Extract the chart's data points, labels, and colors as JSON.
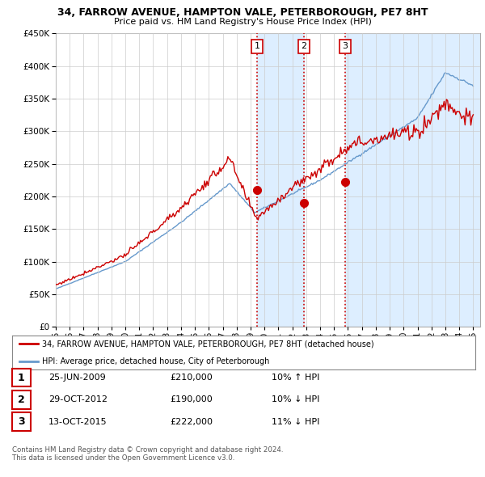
{
  "title_line1": "34, FARROW AVENUE, HAMPTON VALE, PETERBOROUGH, PE7 8HT",
  "title_line2": "Price paid vs. HM Land Registry's House Price Index (HPI)",
  "ytick_values": [
    0,
    50000,
    100000,
    150000,
    200000,
    250000,
    300000,
    350000,
    400000,
    450000
  ],
  "xlim": [
    1995.0,
    2025.5
  ],
  "ylim": [
    0,
    450000
  ],
  "sale_dates": [
    2009.48,
    2012.83,
    2015.79
  ],
  "sale_prices": [
    210000,
    190000,
    222000
  ],
  "sale_labels": [
    "1",
    "2",
    "3"
  ],
  "vline_color": "#cc0000",
  "shade_color": "#ddeeff",
  "legend_red_label": "34, FARROW AVENUE, HAMPTON VALE, PETERBOROUGH, PE7 8HT (detached house)",
  "legend_blue_label": "HPI: Average price, detached house, City of Peterborough",
  "table_data": [
    {
      "label": "1",
      "date": "25-JUN-2009",
      "price": "£210,000",
      "hpi": "10% ↑ HPI"
    },
    {
      "label": "2",
      "date": "29-OCT-2012",
      "price": "£190,000",
      "hpi": "10% ↓ HPI"
    },
    {
      "label": "3",
      "date": "13-OCT-2015",
      "price": "£222,000",
      "hpi": "11% ↓ HPI"
    }
  ],
  "footer": "Contains HM Land Registry data © Crown copyright and database right 2024.\nThis data is licensed under the Open Government Licence v3.0.",
  "red_color": "#cc0000",
  "blue_color": "#6699cc",
  "bg_color": "#ffffff",
  "grid_color": "#cccccc"
}
